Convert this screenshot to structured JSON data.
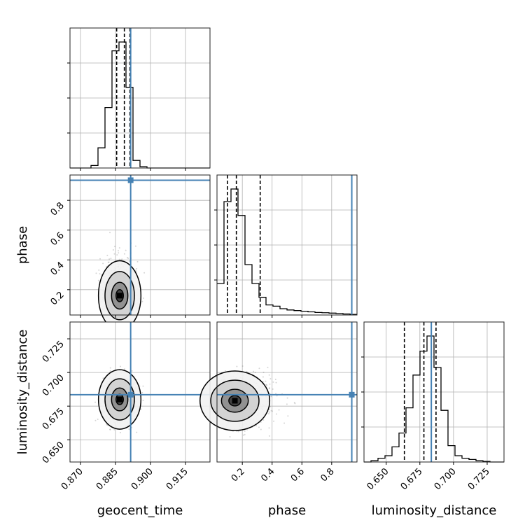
{
  "chart_data": {
    "type": "corner",
    "truth_color": "#4682b4",
    "grid": true,
    "parameters": [
      {
        "name": "geocent_time",
        "label": "geocent_time",
        "range": [
          0.8655,
          0.9255
        ],
        "ticks": [
          0.87,
          0.885,
          0.9,
          0.915
        ],
        "tick_labels": [
          "0.870",
          "0.885",
          "0.900",
          "0.915"
        ],
        "truth": 0.8915,
        "median": 0.8888,
        "quantiles": [
          0.8855,
          0.8888,
          0.8912
        ]
      },
      {
        "name": "phase",
        "label": "phase",
        "range": [
          0.03,
          0.97
        ],
        "ticks": [
          0.2,
          0.4,
          0.6,
          0.8
        ],
        "tick_labels": [
          "0.2",
          "0.4",
          "0.6",
          "0.8"
        ],
        "truth": 0.935,
        "median": 0.16,
        "quantiles": [
          0.1,
          0.16,
          0.32
        ]
      },
      {
        "name": "luminosity_distance",
        "label": "luminosity_distance",
        "range": [
          0.6335,
          0.7375
        ],
        "ticks": [
          0.65,
          0.675,
          0.7,
          0.725
        ],
        "tick_labels": [
          "0.650",
          "0.675",
          "0.700",
          "0.725"
        ],
        "truth": 0.6835,
        "median": 0.678,
        "quantiles": [
          0.6635,
          0.678,
          0.687
        ]
      }
    ],
    "histograms": {
      "geocent_time": {
        "bin_edges": [
          0.8655,
          0.8685,
          0.8715,
          0.8745,
          0.8775,
          0.8805,
          0.8835,
          0.8865,
          0.8895,
          0.8925,
          0.8955,
          0.8985,
          0.9015,
          0.9045,
          0.9075,
          0.9105,
          0.9135,
          0.9165,
          0.9195,
          0.9225,
          0.9255
        ],
        "counts": [
          0,
          0,
          0,
          0.02,
          0.16,
          0.48,
          0.93,
          1.0,
          0.64,
          0.06,
          0.01,
          0,
          0,
          0,
          0,
          0,
          0,
          0,
          0,
          0
        ]
      },
      "phase": {
        "bin_edges": [
          0.03,
          0.077,
          0.124,
          0.171,
          0.218,
          0.265,
          0.312,
          0.359,
          0.406,
          0.453,
          0.5,
          0.547,
          0.594,
          0.641,
          0.688,
          0.735,
          0.782,
          0.829,
          0.876,
          0.923,
          0.97
        ],
        "counts": [
          0.25,
          0.9,
          1.0,
          0.79,
          0.4,
          0.25,
          0.14,
          0.08,
          0.07,
          0.05,
          0.04,
          0.035,
          0.03,
          0.025,
          0.02,
          0.018,
          0.015,
          0.012,
          0.008,
          0.005
        ]
      },
      "luminosity_distance": {
        "bin_edges": [
          0.6335,
          0.6387,
          0.6439,
          0.6491,
          0.6543,
          0.6595,
          0.6647,
          0.6699,
          0.6751,
          0.6803,
          0.6855,
          0.6907,
          0.6959,
          0.7011,
          0.7063,
          0.7115,
          0.7167,
          0.7219,
          0.7271,
          0.7323,
          0.7375
        ],
        "counts": [
          0,
          0.01,
          0.03,
          0.05,
          0.12,
          0.23,
          0.43,
          0.69,
          0.88,
          1.0,
          0.75,
          0.41,
          0.13,
          0.05,
          0.03,
          0.02,
          0.01,
          0.005,
          0,
          0
        ]
      }
    },
    "pairs": [
      {
        "x": "geocent_time",
        "y": "phase",
        "mode": [
          0.8868,
          0.16
        ]
      },
      {
        "x": "geocent_time",
        "y": "luminosity_distance",
        "mode": [
          0.8868,
          0.68
        ]
      },
      {
        "x": "phase",
        "y": "luminosity_distance",
        "mode": [
          0.15,
          0.679
        ]
      }
    ]
  }
}
